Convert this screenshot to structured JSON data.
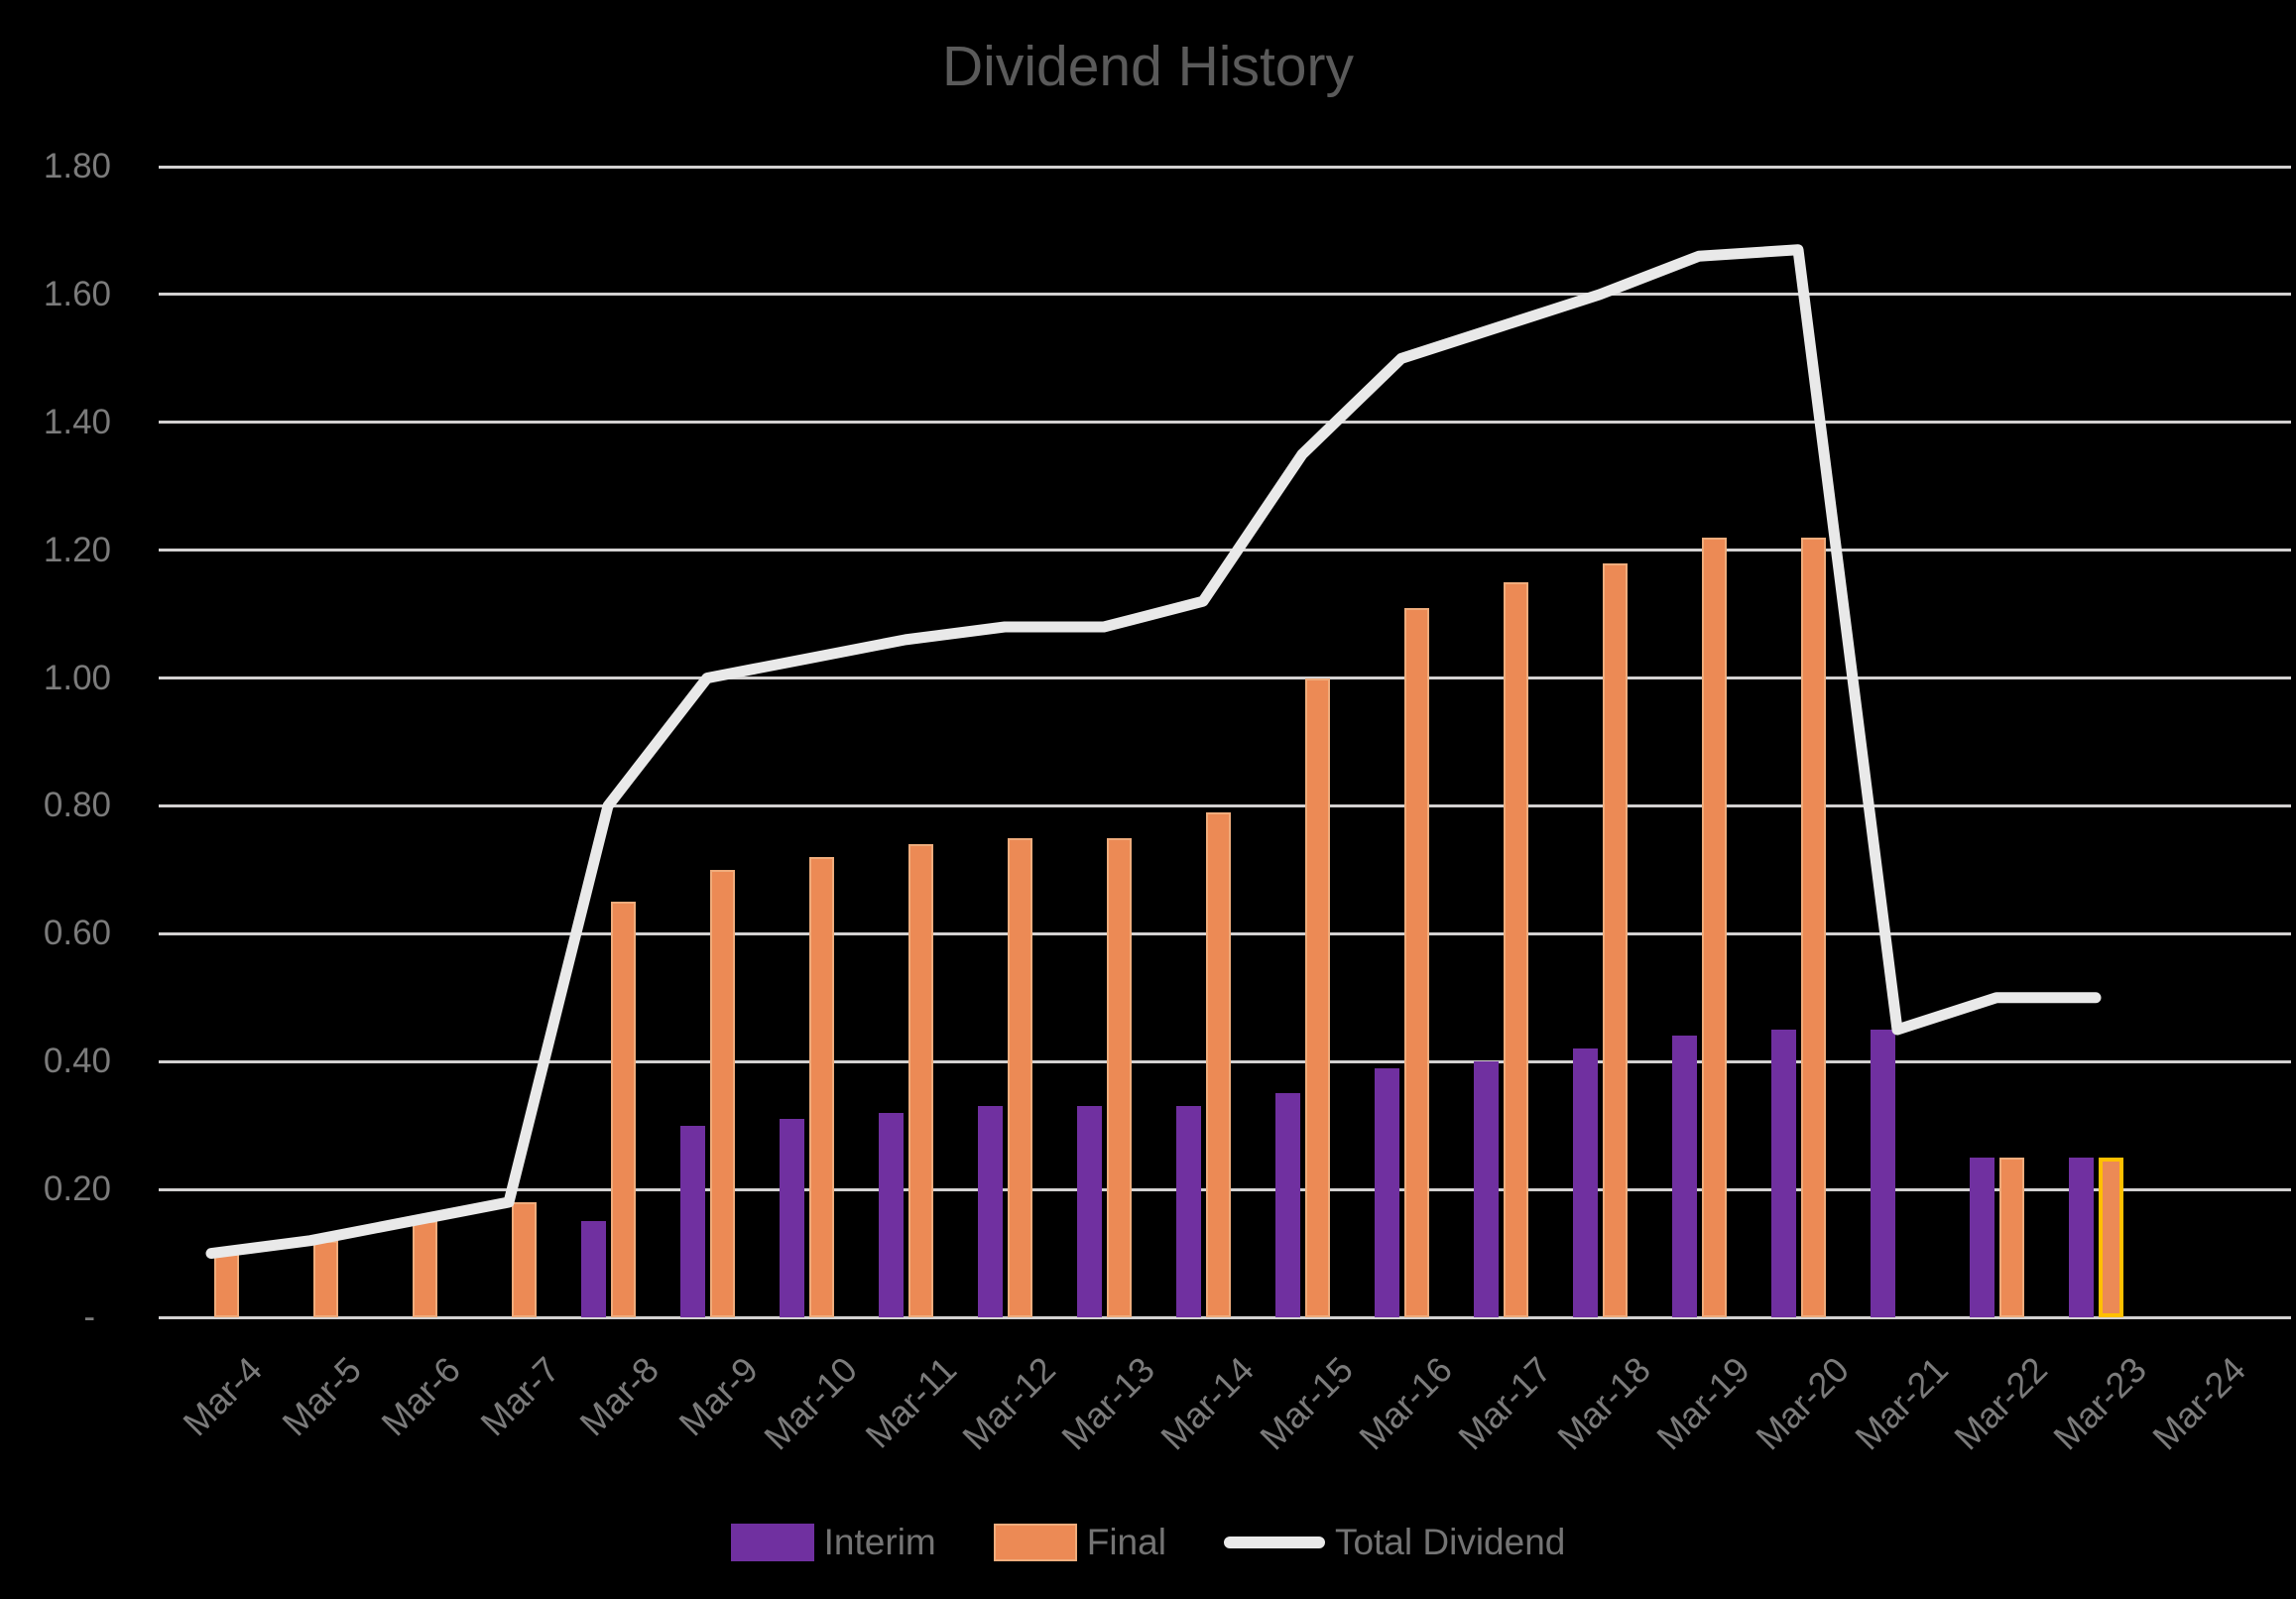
{
  "title": "Dividend History",
  "legend": {
    "interim_label": "Interim",
    "final_label": "Final",
    "total_label": "Total Dividend"
  },
  "colors": {
    "background": "#000000",
    "interim": "#7030A0",
    "final": "#EC8A55",
    "final_border": "#EFAC7C",
    "highlight_border": "#FFC000",
    "total_line": "#E9E9E9",
    "gridline": "#D3D1D1",
    "axis_text": "#7B7B7B",
    "title_text": "#5A5A5A",
    "legend_text": "#747474"
  },
  "chart_data": {
    "type": "bar",
    "subtype": "clustered-bars-with-line-overlay",
    "title": "Dividend History",
    "categories": [
      "Mar-4",
      "Mar-5",
      "Mar-6",
      "Mar-7",
      "Mar-8",
      "Mar-9",
      "Mar-10",
      "Mar-11",
      "Mar-12",
      "Mar-13",
      "Mar-14",
      "Mar-15",
      "Mar-16",
      "Mar-17",
      "Mar-18",
      "Mar-19",
      "Mar-20",
      "Mar-21",
      "Mar-22",
      "Mar-23",
      "Mar-24"
    ],
    "series": [
      {
        "name": "Interim",
        "type": "bar",
        "values": [
          null,
          null,
          null,
          null,
          0.15,
          0.3,
          0.31,
          0.32,
          0.33,
          0.33,
          0.33,
          0.35,
          0.39,
          0.4,
          0.42,
          0.44,
          0.45,
          0.45,
          0.25,
          0.25,
          null
        ]
      },
      {
        "name": "Final",
        "type": "bar",
        "values": [
          0.1,
          0.12,
          0.15,
          0.18,
          0.65,
          0.7,
          0.72,
          0.74,
          0.75,
          0.75,
          0.79,
          1.0,
          1.11,
          1.15,
          1.18,
          1.22,
          1.22,
          null,
          0.25,
          0.25,
          null
        ]
      },
      {
        "name": "Total Dividend",
        "type": "line",
        "values": [
          0.1,
          0.12,
          0.15,
          0.18,
          0.8,
          1.0,
          1.03,
          1.06,
          1.08,
          1.08,
          1.12,
          1.35,
          1.5,
          1.55,
          1.6,
          1.66,
          1.67,
          0.45,
          0.5,
          0.5,
          null
        ]
      }
    ],
    "highlight": {
      "category": "Mar-23",
      "series": "Final",
      "border_color": "#FFC000"
    },
    "y_axis": {
      "min": 0,
      "max": 1.8,
      "step": 0.2,
      "tick_labels": [
        "-",
        "0.20",
        "0.40",
        "0.60",
        "0.80",
        "1.00",
        "1.20",
        "1.40",
        "1.60",
        "1.80"
      ]
    },
    "x_labels_rotation_deg": -45,
    "grid": "horizontal",
    "legend_position": "bottom"
  }
}
